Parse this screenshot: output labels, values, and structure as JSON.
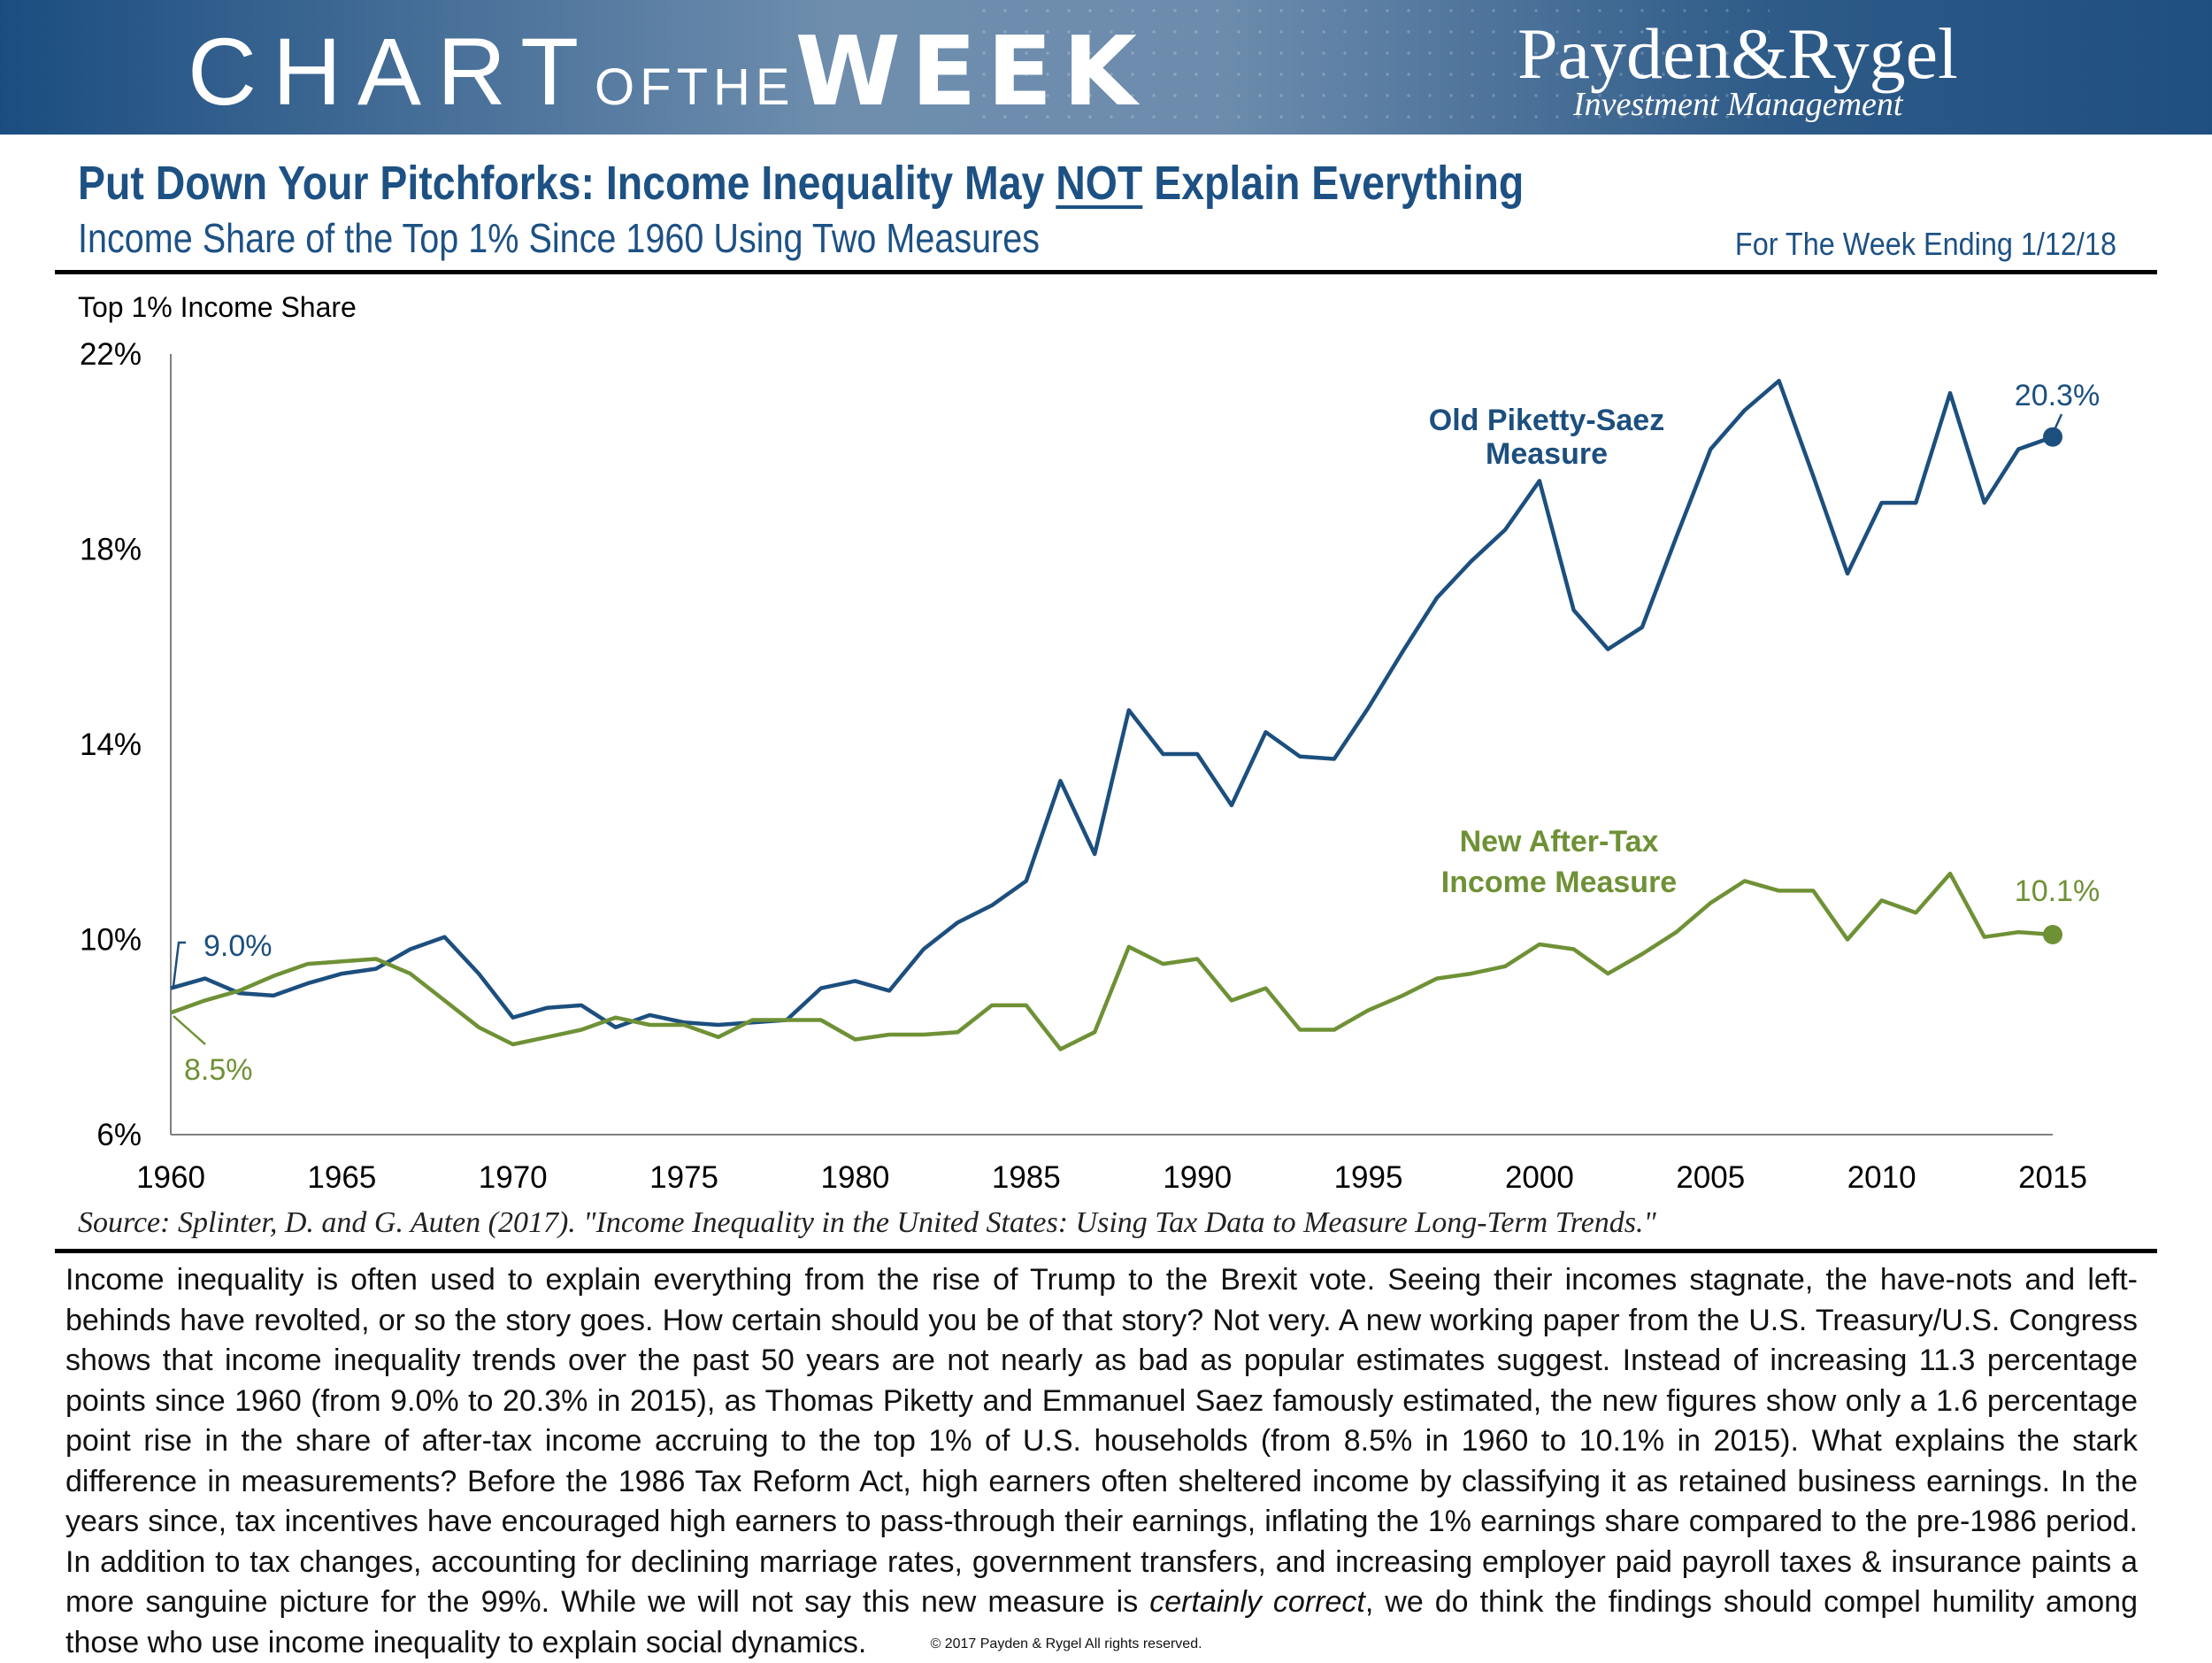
{
  "banner": {
    "chart_word": "CHART",
    "of_the_word": "OFTHE",
    "week_word": "WEEK",
    "logo_name": "Payden&Rygel",
    "logo_tagline": "Investment Management"
  },
  "header": {
    "title_before": "Put Down Your Pitchforks: Income Inequality May ",
    "title_emphasis": "NOT",
    "title_after": " Explain Everything",
    "subtitle": "Income Share of the Top 1% Since 1960 Using Two Measures",
    "week_ending": "For The Week Ending 1/12/18"
  },
  "colors": {
    "accent": "#1d5184",
    "old_measure": "#1c4f7e",
    "new_measure": "#6f9136"
  },
  "chart_data": {
    "type": "line",
    "ylabel": "Top 1% Income Share",
    "ylim": [
      6,
      22
    ],
    "yticks": [
      6,
      10,
      14,
      18,
      22
    ],
    "ytick_labels": [
      "6%",
      "10%",
      "14%",
      "18%",
      "22%"
    ],
    "xlim": [
      1960,
      2015
    ],
    "xticks": [
      1960,
      1965,
      1970,
      1975,
      1980,
      1985,
      1990,
      1995,
      2000,
      2005,
      2010,
      2015
    ],
    "xtick_labels": [
      "1960",
      "1965",
      "1970",
      "1975",
      "1980",
      "1985",
      "1990",
      "1995",
      "2000",
      "2005",
      "2010",
      "2015"
    ],
    "grid": false,
    "series": [
      {
        "name": "Old Piketty-Saez Measure",
        "label_lines": [
          "Old Piketty-Saez",
          "Measure"
        ],
        "color": "#1c4f7e",
        "start_label": "9.0%",
        "end_label": "20.3%",
        "x": [
          1960,
          1961,
          1962,
          1963,
          1964,
          1965,
          1966,
          1967,
          1968,
          1969,
          1970,
          1971,
          1972,
          1973,
          1974,
          1975,
          1976,
          1977,
          1978,
          1979,
          1980,
          1981,
          1982,
          1983,
          1984,
          1985,
          1986,
          1987,
          1988,
          1989,
          1990,
          1991,
          1992,
          1993,
          1994,
          1995,
          1996,
          1997,
          1998,
          1999,
          2000,
          2001,
          2002,
          2003,
          2004,
          2005,
          2006,
          2007,
          2008,
          2009,
          2010,
          2011,
          2012,
          2013,
          2014,
          2015
        ],
        "values": [
          9.0,
          9.2,
          8.9,
          8.85,
          9.1,
          9.3,
          9.4,
          9.8,
          10.05,
          9.3,
          8.4,
          8.6,
          8.65,
          8.2,
          8.45,
          8.3,
          8.25,
          8.3,
          8.35,
          9.0,
          9.15,
          8.95,
          9.8,
          10.35,
          10.7,
          11.2,
          13.25,
          11.75,
          14.7,
          13.8,
          13.8,
          12.75,
          14.25,
          13.75,
          13.7,
          14.75,
          15.9,
          17.0,
          17.75,
          18.4,
          19.4,
          16.75,
          15.95,
          16.4,
          18.25,
          20.05,
          20.85,
          21.45,
          19.5,
          17.5,
          18.95,
          18.95,
          21.2,
          18.95,
          20.05,
          20.3
        ]
      },
      {
        "name": "New After-Tax Income Measure",
        "label_lines": [
          "New After-Tax",
          "Income Measure"
        ],
        "color": "#6f9136",
        "start_label": "8.5%",
        "end_label": "10.1%",
        "x": [
          1960,
          1961,
          1962,
          1963,
          1964,
          1965,
          1966,
          1967,
          1968,
          1969,
          1970,
          1971,
          1972,
          1973,
          1974,
          1975,
          1976,
          1977,
          1978,
          1979,
          1980,
          1981,
          1982,
          1983,
          1984,
          1985,
          1986,
          1987,
          1988,
          1989,
          1990,
          1991,
          1992,
          1993,
          1994,
          1995,
          1996,
          1997,
          1998,
          1999,
          2000,
          2001,
          2002,
          2003,
          2004,
          2005,
          2006,
          2007,
          2008,
          2009,
          2010,
          2011,
          2012,
          2013,
          2014,
          2015
        ],
        "values": [
          8.5,
          8.75,
          8.95,
          9.25,
          9.5,
          9.55,
          9.6,
          9.3,
          8.75,
          8.2,
          7.85,
          8.0,
          8.15,
          8.4,
          8.25,
          8.25,
          8.0,
          8.35,
          8.35,
          8.35,
          7.95,
          8.05,
          8.05,
          8.1,
          8.65,
          8.65,
          7.75,
          8.1,
          9.85,
          9.5,
          9.6,
          8.75,
          9.0,
          8.15,
          8.15,
          8.55,
          8.85,
          9.2,
          9.3,
          9.45,
          9.9,
          9.8,
          9.3,
          9.7,
          10.15,
          10.75,
          11.2,
          11.0,
          11.0,
          10.0,
          10.8,
          10.55,
          11.35,
          10.05,
          10.15,
          10.1
        ]
      }
    ]
  },
  "source_text": "Source:  Splinter, D. and G. Auten (2017). \"Income Inequality in the United States: Using Tax Data to Measure Long-Term Trends.\"",
  "body": {
    "main": "Income inequality is often used to explain everything from the rise of Trump to the Brexit vote. Seeing their incomes stagnate, the have-nots and left-behinds have revolted, or so the story goes. How certain should you be of that story? Not very. A new working paper from the U.S. Treasury/U.S. Congress shows that income inequality trends over the past 50 years are not nearly as bad as popular estimates suggest. Instead of increasing 11.3 percentage points since 1960 (from 9.0% to 20.3% in 2015), as Thomas Piketty and Emmanuel Saez famously estimated, the new figures show only a 1.6 percentage point rise in the share of after-tax income accruing to the top 1% of U.S. households (from 8.5% in 1960 to 10.1% in 2015). What explains the stark difference in measurements? Before the 1986 Tax Reform Act, high earners often sheltered income by classifying it as retained business earnings. In the years since, tax incentives have encouraged high earners to pass-through their earnings, inflating the 1% earnings share compared to the pre-1986 period. In addition to tax changes, accounting for declining marriage rates, government transfers, and increasing employer paid payroll taxes & insurance paints a more sanguine picture for the 99%. While we will not say this new measure is ",
    "emphasis": "certainly correct",
    "tail": ", we do think the findings should compel humility among those who use income inequality to explain social dynamics."
  },
  "footer": {
    "copyright": "© 2017 Payden & Rygel All rights reserved."
  }
}
